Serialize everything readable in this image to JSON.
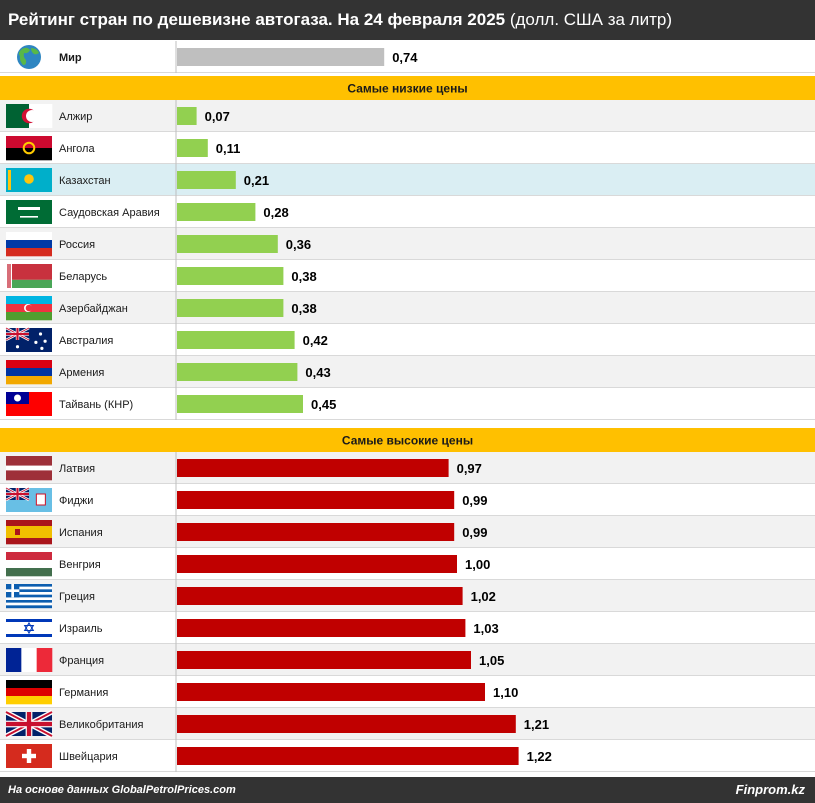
{
  "title": {
    "bold": "Рейтинг стран по дешевизне автогаза. На 24 февраля 2025",
    "regular": " (долл. США за литр)"
  },
  "colors": {
    "header_bg": "#333333",
    "section_bg": "#FFC000",
    "world_bar": "#BFBFBF",
    "low_bar": "#92D050",
    "high_bar": "#C00000",
    "highlight_row": "#DAEEF3",
    "row_even": "#F2F2F2",
    "row_odd": "#FFFFFF"
  },
  "chart_data": {
    "type": "bar",
    "orientation": "horizontal",
    "x_range": [
      0,
      1.3
    ],
    "value_format": "comma-2-decimals",
    "world": {
      "category": "Мир",
      "value": 0.74,
      "flag": "globe-icon"
    },
    "sections": [
      {
        "label": "Самые низкие цены",
        "bar_color": "#92D050",
        "categories": [
          "Алжир",
          "Ангола",
          "Казахстан",
          "Саудовская Аравия",
          "Россия",
          "Беларусь",
          "Азербайджан",
          "Австралия",
          "Армения",
          "Тайвань (КНР)"
        ],
        "values": [
          0.07,
          0.11,
          0.21,
          0.28,
          0.36,
          0.38,
          0.38,
          0.42,
          0.43,
          0.45
        ],
        "flags": [
          "dz",
          "ao",
          "kz",
          "sa",
          "ru",
          "by",
          "az",
          "au",
          "am",
          "tw"
        ],
        "highlight": "Казахстан"
      },
      {
        "label": "Самые высокие цены",
        "bar_color": "#C00000",
        "categories": [
          "Латвия",
          "Фиджи",
          "Испания",
          "Венгрия",
          "Греция",
          "Израиль",
          "Франция",
          "Германия",
          "Великобритания",
          "Швейцария"
        ],
        "values": [
          0.97,
          0.99,
          0.99,
          1.0,
          1.02,
          1.03,
          1.05,
          1.1,
          1.21,
          1.22
        ],
        "flags": [
          "lv",
          "fj",
          "es",
          "hu",
          "gr",
          "il",
          "fr",
          "de",
          "gb",
          "ch"
        ]
      }
    ]
  },
  "footer": {
    "source": "На основе данных GlobalPetrolPrices.com",
    "brand": "Finprom.kz"
  }
}
